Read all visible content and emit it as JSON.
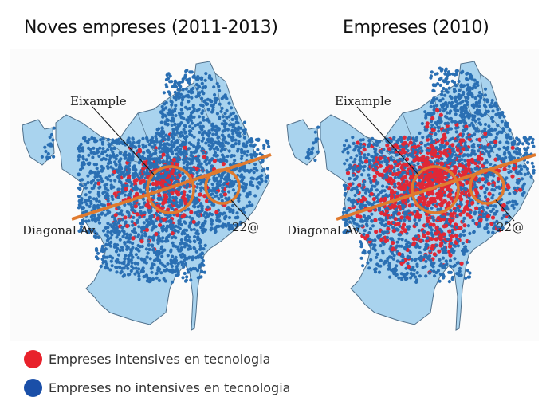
{
  "titles": {
    "left": "Noves empreses (2011-2013)",
    "right": "Empreses (2010)"
  },
  "maps": {
    "left": {
      "name": "Noves empreses (2011-2013)",
      "labels": {
        "eixample": "Eixample",
        "diagonal": "Diagonal Av.",
        "district22": "22@"
      },
      "red_intensity": 0.35
    },
    "right": {
      "name": "Empreses (2010)",
      "labels": {
        "eixample": "Eixample",
        "diagonal": "Diagonal Av.",
        "district22": "22@"
      },
      "red_intensity": 0.8
    }
  },
  "legend": [
    {
      "label": "Empreses intensives en tecnologia",
      "color": "#e8212b"
    },
    {
      "label": "Empreses no intensives en tecnologia",
      "color": "#1a4fa8"
    }
  ],
  "colors": {
    "land": "#a9d3ee",
    "border": "#4f6f8a",
    "blue_dot": "#2a6fb3",
    "red_dot": "#e02836",
    "orange": "#e07a2e"
  }
}
